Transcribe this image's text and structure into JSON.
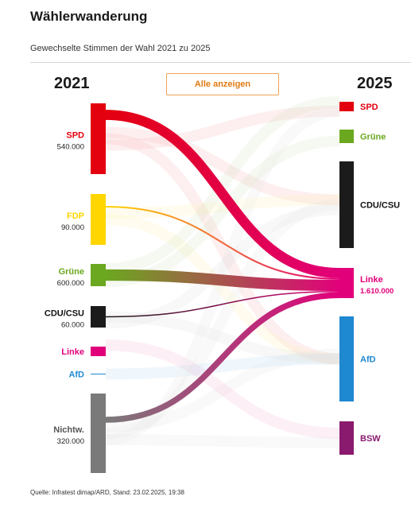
{
  "header": {
    "title": "Wählerwanderung",
    "subtitle": "Gewechselte Stimmen der Wahl 2021 zu 2025"
  },
  "controls": {
    "show_all_label": "Alle anzeigen"
  },
  "footer": {
    "source": "Quelle: Infratest dimap/ARD, Stand: 23.02.2025, 19:38"
  },
  "chart_data": {
    "type": "sankey",
    "title": "Wählerwanderung",
    "subtitle": "Gewechselte Stimmen der Wahl 2021 zu 2025",
    "left_label": "2021",
    "right_label": "2025",
    "highlight_target": "Linke",
    "sources": [
      {
        "name": "SPD",
        "value_label": "540.000",
        "color": "#e3000f"
      },
      {
        "name": "FDP",
        "value_label": "90.000",
        "color": "#ffd600"
      },
      {
        "name": "Grüne",
        "value_label": "600.000",
        "color": "#6ba81f"
      },
      {
        "name": "CDU/CSU",
        "value_label": "60.000",
        "color": "#1b1b1b"
      },
      {
        "name": "Linke",
        "value_label": "",
        "color": "#e2007a"
      },
      {
        "name": "AfD",
        "value_label": "",
        "color": "#1e88d0"
      },
      {
        "name": "Nichtw.",
        "value_label": "320.000",
        "color": "#7a7a7a"
      }
    ],
    "targets": [
      {
        "name": "SPD",
        "value_label": "",
        "color": "#e3000f"
      },
      {
        "name": "Grüne",
        "value_label": "",
        "color": "#6ba81f"
      },
      {
        "name": "CDU/CSU",
        "value_label": "",
        "color": "#1b1b1b"
      },
      {
        "name": "Linke",
        "value_label": "1.610.000",
        "color": "#e2007a"
      },
      {
        "name": "AfD",
        "value_label": "",
        "color": "#1e88d0"
      },
      {
        "name": "BSW",
        "value_label": "",
        "color": "#8a1a6e"
      }
    ],
    "flows": [
      {
        "from": "SPD",
        "to": "Linke",
        "value": 540000
      },
      {
        "from": "FDP",
        "to": "Linke",
        "value": 90000
      },
      {
        "from": "Grüne",
        "to": "Linke",
        "value": 600000
      },
      {
        "from": "CDU/CSU",
        "to": "Linke",
        "value": 60000
      },
      {
        "from": "Nichtw.",
        "to": "Linke",
        "value": 320000
      }
    ]
  }
}
